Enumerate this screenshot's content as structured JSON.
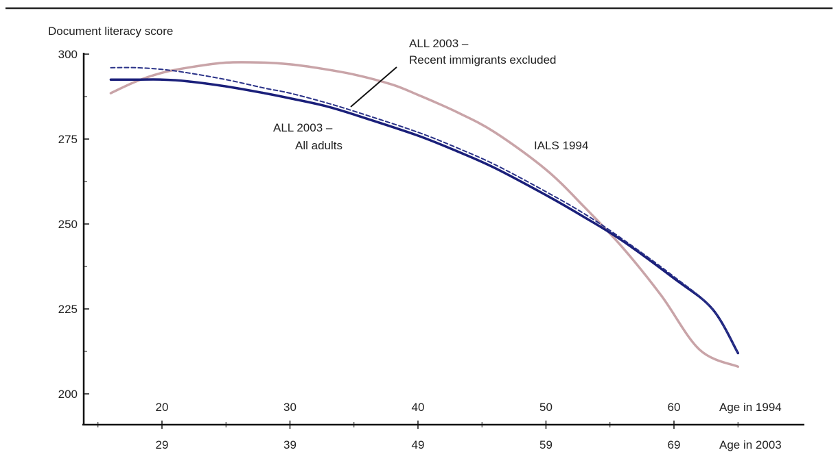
{
  "chart_data": {
    "type": "line",
    "ylabel": "Document literacy score",
    "ylim": [
      200,
      300
    ],
    "yticks": [
      200,
      225,
      250,
      275,
      300
    ],
    "x_axis_top": {
      "label": "Age in 1994",
      "ticks": [
        20,
        30,
        40,
        50,
        60
      ]
    },
    "x_axis_bottom": {
      "label": "Age in 2003",
      "ticks": [
        29,
        39,
        49,
        59,
        69
      ]
    },
    "xlim": [
      14,
      67
    ],
    "series": [
      {
        "name": "IALS 1994",
        "style": "solid",
        "color": "#c9a4a8",
        "x": [
          16,
          18,
          20,
          22,
          25,
          28,
          30,
          32,
          35,
          38,
          40,
          43,
          46,
          50,
          53,
          56,
          59,
          62,
          65
        ],
        "y": [
          288.5,
          292,
          294.5,
          296,
          297.5,
          297.5,
          297,
          296,
          294,
          291,
          288,
          283,
          277,
          266,
          255,
          243,
          229,
          213,
          208
        ]
      },
      {
        "name": "ALL  2003 – All adults",
        "style": "solid",
        "color": "#1a1f7a",
        "x": [
          16,
          18,
          20,
          22,
          25,
          28,
          30,
          33,
          36,
          40,
          43,
          46,
          50,
          53,
          56,
          60,
          63,
          65
        ],
        "y": [
          292.5,
          292.5,
          292.5,
          292,
          290.5,
          288.5,
          287,
          284.5,
          281,
          276,
          271.5,
          266.5,
          258.5,
          252,
          245,
          234,
          225,
          212
        ]
      },
      {
        "name": "ALL  2003 – Recent immigrants excluded",
        "style": "dashed",
        "color": "#2a3288",
        "x": [
          16,
          18,
          20,
          22,
          25,
          28,
          30,
          33,
          36,
          40,
          43,
          46,
          50,
          53,
          56,
          60,
          63,
          65
        ],
        "y": [
          296,
          296,
          295.5,
          294.5,
          292.5,
          290,
          288.5,
          285.5,
          282,
          277,
          272.5,
          267.5,
          259.5,
          253,
          245.5,
          234.5,
          225,
          212
        ]
      }
    ],
    "annotations": [
      {
        "line1": "ALL  2003 –",
        "line2": "Recent immigrants excluded"
      },
      {
        "line1": "ALL  2003 –",
        "line2": "All adults"
      },
      {
        "line1": "IALS 1994"
      }
    ]
  }
}
